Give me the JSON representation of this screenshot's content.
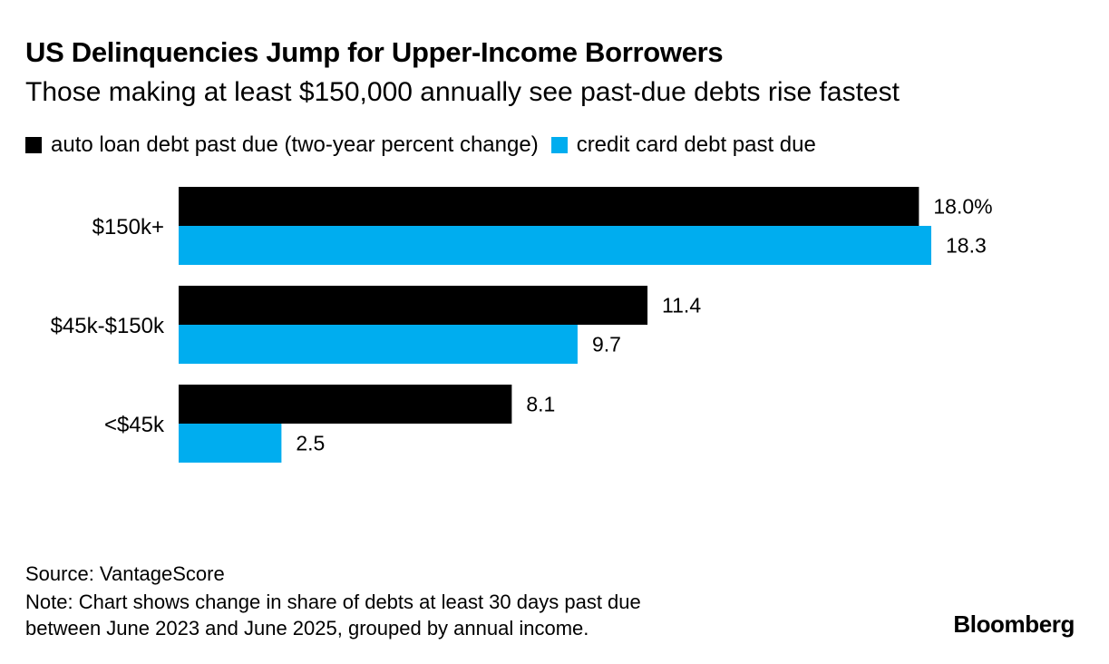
{
  "header": {
    "title": "US Delinquencies Jump for Upper-Income Borrowers",
    "subtitle": "Those making at least $150,000 annually see past-due debts rise fastest"
  },
  "legend": [
    {
      "label": "auto loan debt past due (two-year percent change)",
      "color": "#000000"
    },
    {
      "label": "credit card debt past due",
      "color": "#00adef"
    }
  ],
  "chart_data": {
    "type": "bar",
    "orientation": "horizontal",
    "categories": [
      "$150k+",
      "$45k-$150k",
      "<$45k"
    ],
    "series": [
      {
        "name": "auto loan debt past due (two-year percent change)",
        "values": [
          18.0,
          11.4,
          8.1
        ],
        "labels": [
          "18.0%",
          "11.4",
          "8.1"
        ],
        "color": "#000000"
      },
      {
        "name": "credit card debt past due",
        "values": [
          18.3,
          9.7,
          2.5
        ],
        "labels": [
          "18.3",
          "9.7",
          "2.5"
        ],
        "color": "#00adef"
      }
    ],
    "xlim": [
      0,
      18.3
    ],
    "grid": false,
    "legend_position": "top"
  },
  "footer": {
    "source": "Source: VantageScore",
    "note_line1": "Note: Chart shows change in share of debts at least 30 days past due",
    "note_line2": "between June 2023 and June 2025, grouped by annual income.",
    "brand": "Bloomberg"
  }
}
